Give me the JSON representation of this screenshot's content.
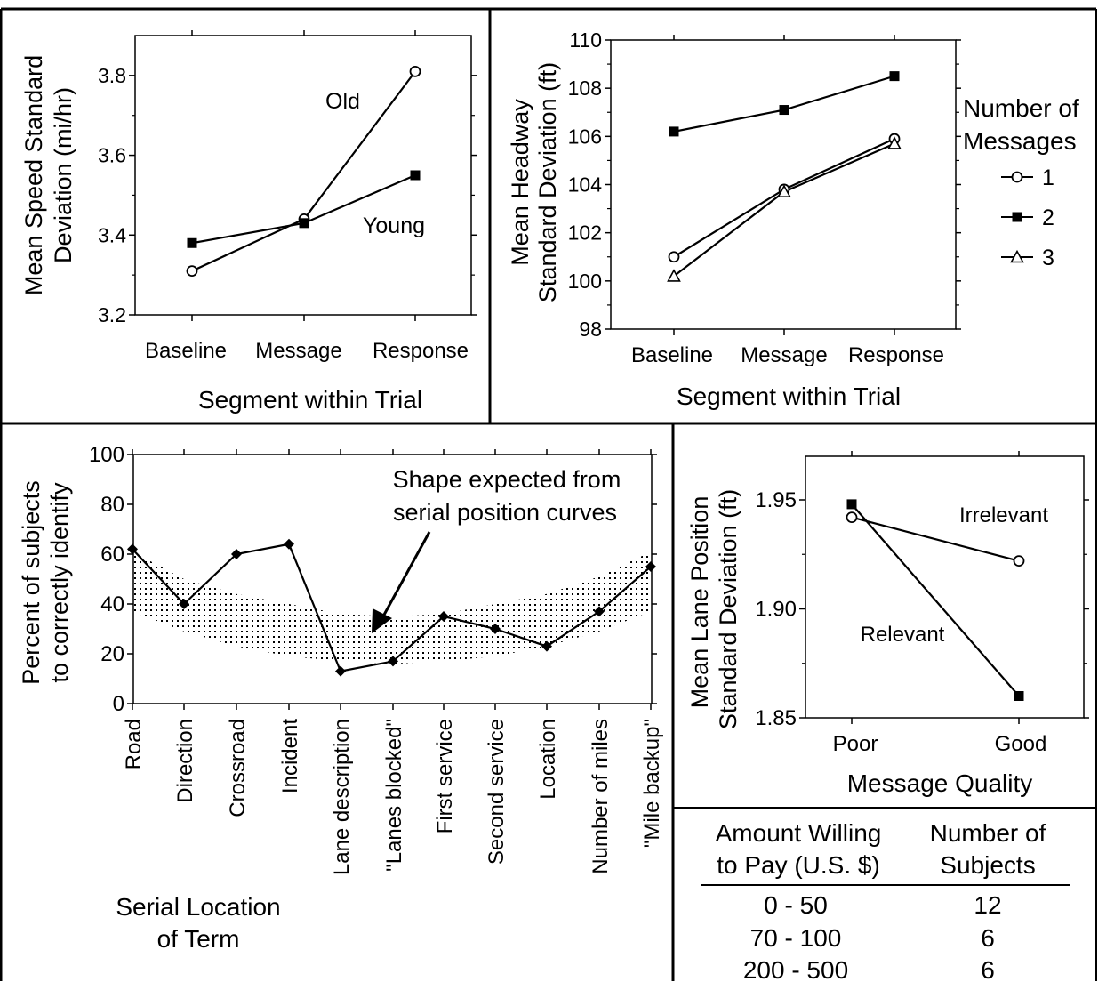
{
  "chart_data": [
    {
      "type": "line",
      "ylabel_line1": "Mean Speed Standard",
      "ylabel_line2": "Deviation (mi/hr)",
      "xlabel": "Segment within Trial",
      "categories": [
        "Baseline",
        "Message",
        "Response"
      ],
      "ylim": [
        3.2,
        3.9
      ],
      "yticks": [
        3.2,
        3.4,
        3.6,
        3.8
      ],
      "ytick_labels": [
        "3.2",
        "3.4",
        "3.6",
        "3.8"
      ],
      "series": [
        {
          "name": "Old",
          "marker": "open-circle",
          "values": [
            3.31,
            3.44,
            3.81
          ]
        },
        {
          "name": "Young",
          "marker": "filled-square",
          "values": [
            3.38,
            3.43,
            3.55
          ]
        }
      ]
    },
    {
      "type": "line",
      "ylabel_line1": "Mean Headway",
      "ylabel_line2": "Standard Deviation (ft)",
      "xlabel": "Segment within Trial",
      "categories": [
        "Baseline",
        "Message",
        "Response"
      ],
      "ylim": [
        98,
        110
      ],
      "yticks": [
        98,
        100,
        102,
        104,
        106,
        108,
        110
      ],
      "ytick_labels": [
        "98",
        "100",
        "102",
        "104",
        "106",
        "108",
        "110"
      ],
      "legend_title_line1": "Number of",
      "legend_title_line2": "Messages",
      "series": [
        {
          "name": "1",
          "marker": "open-circle",
          "values": [
            101.0,
            103.8,
            105.9
          ]
        },
        {
          "name": "2",
          "marker": "filled-square",
          "values": [
            106.2,
            107.1,
            108.5
          ]
        },
        {
          "name": "3",
          "marker": "open-triangle",
          "values": [
            100.2,
            103.7,
            105.7
          ]
        }
      ]
    },
    {
      "type": "line",
      "ylabel_line1": "Percent of subjects",
      "ylabel_line2": "to correctly identify",
      "xlabel_line1": "Serial Location",
      "xlabel_line2": "of Term",
      "categories": [
        "Road",
        "Direction",
        "Crossroad",
        "Incident",
        "Lane description",
        "\"Lanes blocked\"",
        "First service",
        "Second service",
        "Location",
        "Number of miles",
        "\"Mile backup\""
      ],
      "ylim": [
        0,
        100
      ],
      "yticks": [
        0,
        20,
        40,
        60,
        80,
        100
      ],
      "ytick_labels": [
        "0",
        "20",
        "40",
        "60",
        "80",
        "100"
      ],
      "series": [
        {
          "marker": "filled-diamond",
          "values": [
            62,
            40,
            60,
            64,
            13,
            17,
            35,
            30,
            23,
            37,
            55
          ]
        }
      ],
      "band_upper": [
        61,
        50,
        44,
        40,
        36,
        35,
        36,
        40,
        44,
        51,
        61
      ],
      "band_lower": [
        37,
        29,
        23,
        19,
        17,
        16,
        17,
        19,
        23,
        29,
        37
      ],
      "annotation_line1": "Shape expected from",
      "annotation_line2": "serial position curves"
    },
    {
      "type": "line",
      "ylabel_line1": "Mean Lane Position",
      "ylabel_line2": "Standard Deviation (ft)",
      "xlabel": "Message Quality",
      "categories": [
        "Poor",
        "Good"
      ],
      "ylim": [
        1.85,
        1.97
      ],
      "yticks": [
        1.85,
        1.9,
        1.95
      ],
      "ytick_labels": [
        "1.85",
        "1.90",
        "1.95"
      ],
      "series": [
        {
          "name": "Irrelevant",
          "marker": "open-circle",
          "values": [
            1.942,
            1.922
          ]
        },
        {
          "name": "Relevant",
          "marker": "filled-square",
          "values": [
            1.948,
            1.86
          ]
        }
      ]
    },
    {
      "type": "table",
      "columns": [
        {
          "line1": "Amount Willing",
          "line2": "to Pay (U.S. $)"
        },
        {
          "line1": "Number of",
          "line2": "Subjects"
        }
      ],
      "rows": [
        [
          "0 - 50",
          "12"
        ],
        [
          "70 - 100",
          "6"
        ],
        [
          "200 - 500",
          "6"
        ]
      ]
    }
  ]
}
